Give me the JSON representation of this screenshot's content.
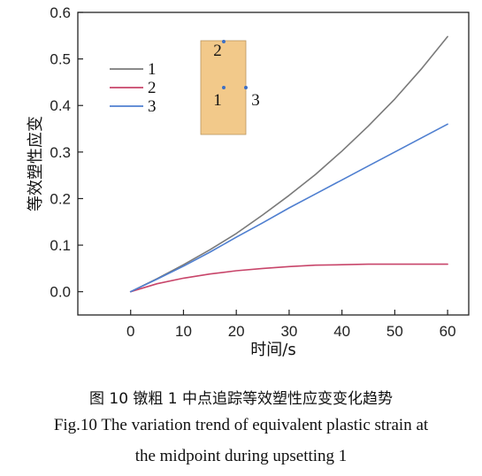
{
  "chart_data": {
    "type": "line",
    "title": "",
    "xlabel": "时间/s",
    "ylabel": "等效塑性应变",
    "xlim": [
      -10,
      64
    ],
    "ylim": [
      -0.05,
      0.6
    ],
    "x_ticks": [
      0,
      10,
      20,
      30,
      40,
      50,
      60
    ],
    "y_ticks": [
      0.0,
      0.1,
      0.2,
      0.3,
      0.4,
      0.5,
      0.6
    ],
    "x_tick_labels": [
      "0",
      "10",
      "20",
      "30",
      "40",
      "50",
      "60"
    ],
    "y_tick_labels": [
      "0.0",
      "0.1",
      "0.2",
      "0.3",
      "0.4",
      "0.5",
      "0.6"
    ],
    "grid": false,
    "legend_position": "upper-left",
    "x": [
      0,
      5,
      10,
      15,
      20,
      25,
      30,
      35,
      40,
      45,
      50,
      55,
      60
    ],
    "series": [
      {
        "name": "1",
        "color": "#7a7a7a",
        "values": [
          0.0,
          0.028,
          0.058,
          0.09,
          0.125,
          0.165,
          0.207,
          0.252,
          0.302,
          0.356,
          0.414,
          0.478,
          0.548
        ]
      },
      {
        "name": "2",
        "color": "#c8456a",
        "values": [
          0.0,
          0.017,
          0.029,
          0.038,
          0.045,
          0.05,
          0.054,
          0.057,
          0.058,
          0.059,
          0.059,
          0.059,
          0.059
        ]
      },
      {
        "name": "3",
        "color": "#4f7fd0",
        "values": [
          0.0,
          0.027,
          0.055,
          0.085,
          0.117,
          0.148,
          0.18,
          0.21,
          0.24,
          0.27,
          0.3,
          0.33,
          0.36
        ]
      }
    ],
    "inset": {
      "fill": "#f2c98a",
      "point_color": "#3d6fc4",
      "points": [
        {
          "label": "2"
        },
        {
          "label": "1"
        },
        {
          "label": "3"
        }
      ]
    }
  },
  "captions": {
    "cn": "图 10 镦粗 1 中点追踪等效塑性应变变化趋势",
    "en_line1": "Fig.10 The variation trend of equivalent plastic strain at",
    "en_line2": "the midpoint during upsetting 1"
  }
}
